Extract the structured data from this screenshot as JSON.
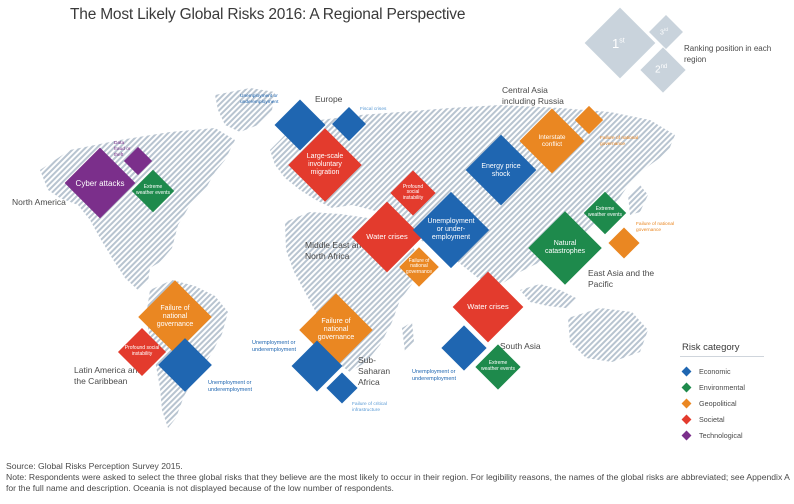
{
  "title": "The Most Likely Global Risks 2016: A Regional Perspective",
  "key": {
    "first": "1",
    "first_sup": "st",
    "second": "2",
    "second_sup": "nd",
    "third": "3",
    "third_sup": "rd",
    "label": "Ranking position in each region"
  },
  "regions": {
    "north_america": "North America",
    "europe": "Europe",
    "central_asia": "Central Asia including Russia",
    "middle_east": "Middle East and North Africa",
    "east_asia": "East Asia and the Pacific",
    "latin_america": "Latin America and the Caribbean",
    "sub_saharan": "Sub-Saharan Africa",
    "south_asia": "South Asia"
  },
  "risks": {
    "na_1": "Cyber attacks",
    "na_2": "Extreme weather events",
    "na_3": "Data fraud or theft",
    "eu_1": "Large-scale involuntary migration",
    "eu_2": "Unemployment or underemployment",
    "eu_3": "Fiscal crises",
    "ca_1": "Energy price shock",
    "ca_2": "Interstate conflict",
    "ca_3": "Failure of national governance",
    "me_1": "Water crises",
    "me_2": "Unemployment or under-employment",
    "me_3": "Profound social instability",
    "me_4": "Failure of national governance",
    "ea_1": "Natural catastrophes",
    "ea_2": "Extreme weather events",
    "ea_3": "Failure of national governance",
    "la_1": "Failure of national governance",
    "la_2": "Profound social instability",
    "la_3": "Unemployment or underemployment",
    "ss_1": "Failure of national governance",
    "ss_2": "Unemployment or underemployment",
    "ss_3": "Failure of critical infrastructure",
    "sa_1": "Water crises",
    "sa_2": "Unemployment or underemployment",
    "sa_3": "Extreme weather events"
  },
  "legend": {
    "title": "Risk category",
    "items": [
      {
        "label": "Economic",
        "color": "#1f66b1"
      },
      {
        "label": "Environmental",
        "color": "#1e8a4c"
      },
      {
        "label": "Geopolitical",
        "color": "#ea8722"
      },
      {
        "label": "Societal",
        "color": "#e33b2d"
      },
      {
        "label": "Technological",
        "color": "#7b2f8b"
      }
    ]
  },
  "footer": {
    "source": "Source: Global Risks Perception Survey 2015.",
    "note": "Note: Respondents were asked to select the three global risks that they believe are the most likely to occur in their region. For legibility reasons, the names of the global risks are abbreviated; see Appendix A for the full name and description. Oceania is not displayed because of the low number of respondents."
  }
}
